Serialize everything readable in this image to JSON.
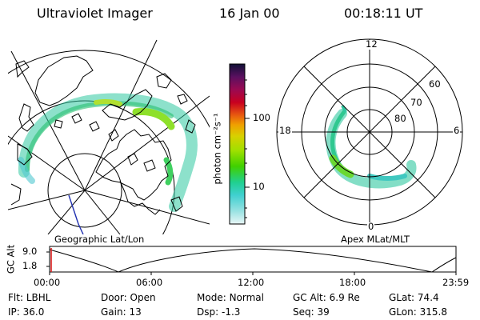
{
  "header": {
    "title": "Ultraviolet Imager",
    "date": "16 Jan 00",
    "time": "00:18:11 UT"
  },
  "colorbar": {
    "unit_label": "photon cm⁻²s⁻¹",
    "ticks": [
      "100",
      "10"
    ],
    "colors": [
      "#101036",
      "#5a1060",
      "#9a0a52",
      "#c80020",
      "#e85a10",
      "#f0a000",
      "#d8d000",
      "#a0e000",
      "#40d000",
      "#20d090",
      "#40d0d0",
      "#90e0e0",
      "#d8f0f0"
    ]
  },
  "left_map": {
    "label": "Geographic Lat/Lon",
    "aurora_color": "#30c8a0",
    "aurora_bright": "#8ee02a",
    "coast_color": "#000000"
  },
  "right_map": {
    "label": "Apex MLat/MLT",
    "mlt_labels": {
      "top": "12",
      "bottom": "0",
      "left": "18",
      "right": "6"
    },
    "lat_labels": [
      "60",
      "70",
      "80"
    ]
  },
  "timeline": {
    "ylabel": "GC Alt",
    "yticks": [
      "9.0",
      "1.8"
    ],
    "xticks": [
      "00:00",
      "06:00",
      "12:00",
      "18:00",
      "23:59"
    ],
    "marker_color": "#e02020"
  },
  "status": {
    "row1": [
      {
        "label": "Flt:",
        "value": "LBHL"
      },
      {
        "label": "Door:",
        "value": "Open"
      },
      {
        "label": "Mode:",
        "value": "Normal"
      },
      {
        "label": "GC Alt:",
        "value": "6.9 Re"
      },
      {
        "label": "GLat:",
        "value": "74.4"
      }
    ],
    "row2": [
      {
        "label": "IP:",
        "value": "36.0"
      },
      {
        "label": "Gain:",
        "value": "13"
      },
      {
        "label": "Dsp:",
        "value": "-1.3"
      },
      {
        "label": "Seq:",
        "value": "39"
      },
      {
        "label": "GLon:",
        "value": "315.8"
      }
    ]
  }
}
